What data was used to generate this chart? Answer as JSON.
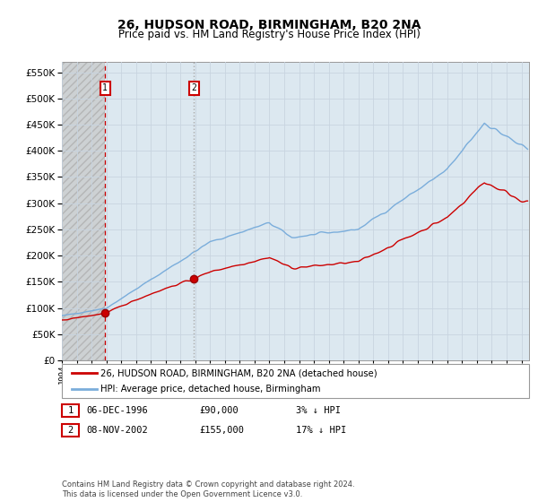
{
  "title": "26, HUDSON ROAD, BIRMINGHAM, B20 2NA",
  "subtitle": "Price paid vs. HM Land Registry's House Price Index (HPI)",
  "ylabel_vals": [
    0,
    50000,
    100000,
    150000,
    200000,
    250000,
    300000,
    350000,
    400000,
    450000,
    500000,
    550000
  ],
  "ylim": [
    0,
    570000
  ],
  "xlim_start": 1994.0,
  "xlim_end": 2025.5,
  "sale1_year": 1996.92,
  "sale1_price": 90000,
  "sale1_label": "1",
  "sale2_year": 2002.92,
  "sale2_price": 155000,
  "sale2_label": "2",
  "property_line_color": "#cc0000",
  "hpi_line_color": "#7aaddb",
  "sale_dot_color": "#cc0000",
  "grid_color": "#c8d4e0",
  "background_color": "#ffffff",
  "plot_bg_color": "#dce8f0",
  "hatch_bg_color": "#dcdcdc",
  "legend_line1": "26, HUDSON ROAD, BIRMINGHAM, B20 2NA (detached house)",
  "legend_line2": "HPI: Average price, detached house, Birmingham",
  "table_row1": [
    "1",
    "06-DEC-1996",
    "£90,000",
    "3% ↓ HPI"
  ],
  "table_row2": [
    "2",
    "08-NOV-2002",
    "£155,000",
    "17% ↓ HPI"
  ],
  "footnote": "Contains HM Land Registry data © Crown copyright and database right 2024.\nThis data is licensed under the Open Government Licence v3.0.",
  "xtick_years": [
    1994,
    1995,
    1996,
    1997,
    1998,
    1999,
    2000,
    2001,
    2002,
    2003,
    2004,
    2005,
    2006,
    2007,
    2008,
    2009,
    2010,
    2011,
    2012,
    2013,
    2014,
    2015,
    2016,
    2017,
    2018,
    2019,
    2020,
    2021,
    2022,
    2023,
    2024,
    2025
  ]
}
